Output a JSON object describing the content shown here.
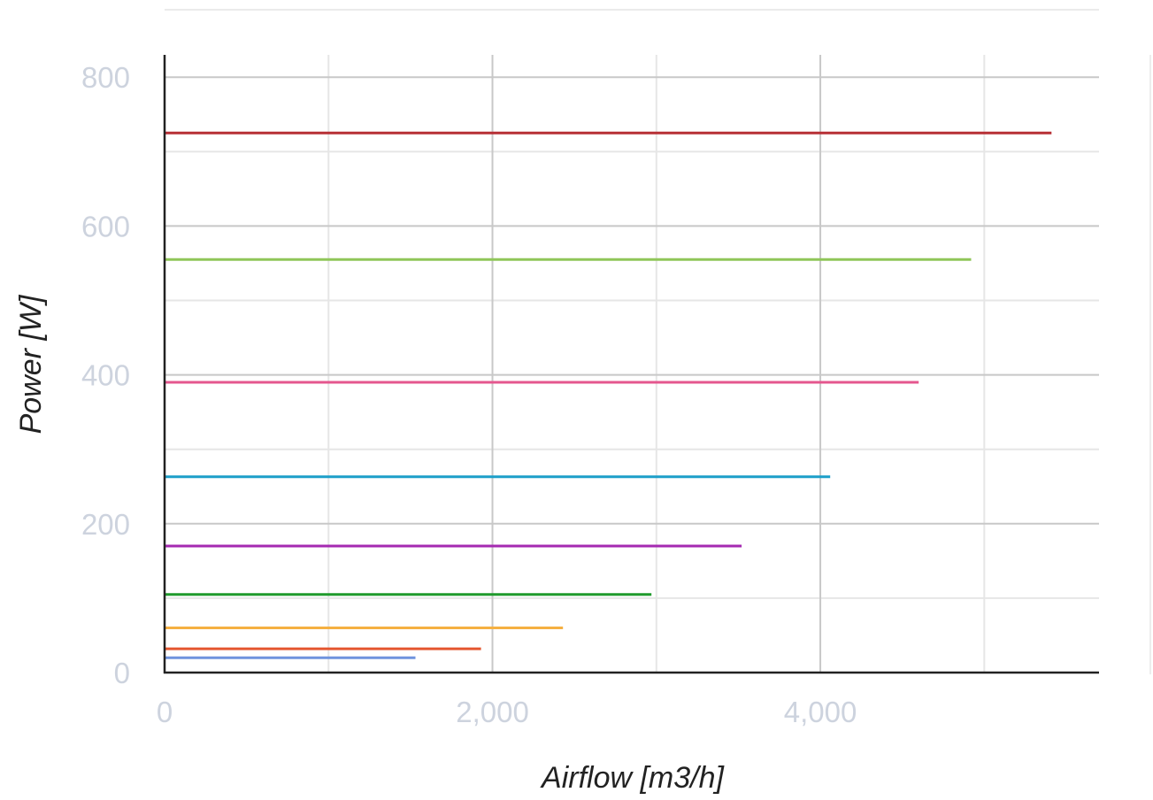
{
  "chart_data": {
    "type": "line",
    "title": "",
    "xlabel": "Airflow [m3/h]",
    "ylabel": "Power [W]",
    "xlim": [
      0,
      5700
    ],
    "ylim": [
      0,
      830
    ],
    "x_ticks": [
      {
        "value": 0,
        "label": "0"
      },
      {
        "value": 2000,
        "label": "2,000"
      },
      {
        "value": 4000,
        "label": "4,000"
      }
    ],
    "y_ticks": [
      {
        "value": 0,
        "label": "0"
      },
      {
        "value": 200,
        "label": "200"
      },
      {
        "value": 400,
        "label": "400"
      },
      {
        "value": 600,
        "label": "600"
      },
      {
        "value": 800,
        "label": "800"
      }
    ],
    "x_minor_grid": [
      1000,
      3000,
      5000
    ],
    "y_minor_grid": [
      100,
      300,
      500,
      700
    ],
    "grid": true,
    "legend": "none",
    "series": [
      {
        "color": "#6f93de",
        "x": [
          0,
          1530
        ],
        "y": [
          20,
          20
        ]
      },
      {
        "color": "#e4562f",
        "x": [
          0,
          1930
        ],
        "y": [
          32,
          32
        ]
      },
      {
        "color": "#f5b042",
        "x": [
          0,
          2430
        ],
        "y": [
          60,
          60
        ]
      },
      {
        "color": "#1f9a2c",
        "x": [
          0,
          2970
        ],
        "y": [
          105,
          105
        ]
      },
      {
        "color": "#a52ab1",
        "x": [
          0,
          3520
        ],
        "y": [
          170,
          170
        ]
      },
      {
        "color": "#1c9fc9",
        "x": [
          0,
          4060
        ],
        "y": [
          263,
          263
        ]
      },
      {
        "color": "#e4578e",
        "x": [
          0,
          4600
        ],
        "y": [
          390,
          390
        ]
      },
      {
        "color": "#8fc658",
        "x": [
          0,
          4920
        ],
        "y": [
          555,
          555
        ]
      },
      {
        "color": "#b72f35",
        "x": [
          0,
          5410
        ],
        "y": [
          725,
          725
        ]
      }
    ]
  }
}
